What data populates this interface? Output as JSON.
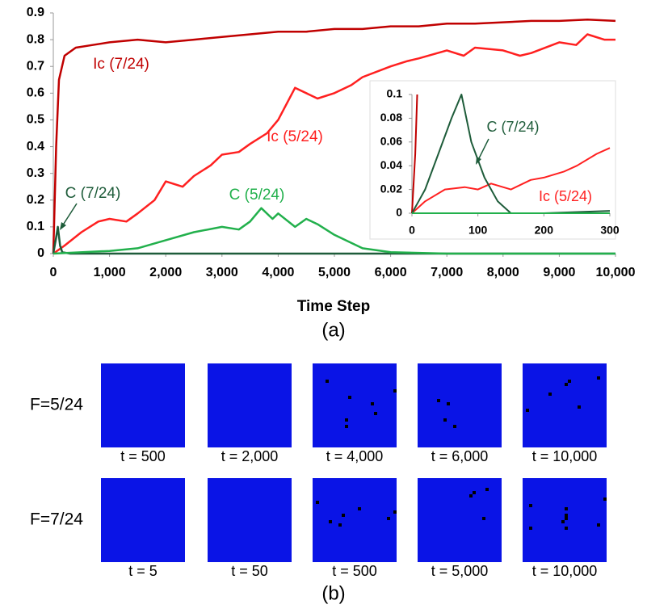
{
  "chart_data": [
    {
      "type": "line",
      "x_label": "Time Step",
      "caption": "(a)",
      "xlim": [
        0,
        10000
      ],
      "ylim": [
        0,
        0.9
      ],
      "xticks": [
        0,
        {
          "value": 1000,
          "label": "1,000"
        },
        {
          "value": 2000,
          "label": "2,000"
        },
        {
          "value": 3000,
          "label": "3,000"
        },
        {
          "value": 4000,
          "label": "4,000"
        },
        {
          "value": 5000,
          "label": "5,000"
        },
        {
          "value": 6000,
          "label": "6,000"
        },
        {
          "value": 7000,
          "label": "7,000"
        },
        {
          "value": 8000,
          "label": "8,000"
        },
        {
          "value": 9000,
          "label": "9,000"
        },
        {
          "value": 10000,
          "label": "10,000"
        }
      ],
      "yticks": [
        0,
        0.1,
        0.2,
        0.3,
        0.4,
        0.5,
        0.6,
        0.7,
        0.8,
        0.9
      ],
      "series": [
        {
          "name": "Ic (7/24)",
          "color": "#c00000",
          "x": [
            0,
            50,
            100,
            200,
            400,
            700,
            1000,
            1500,
            2000,
            2500,
            3000,
            3500,
            4000,
            4500,
            5000,
            5500,
            6000,
            6500,
            7000,
            7500,
            8000,
            8500,
            9000,
            9500,
            10000
          ],
          "values": [
            0,
            0.4,
            0.65,
            0.74,
            0.77,
            0.78,
            0.79,
            0.8,
            0.79,
            0.8,
            0.81,
            0.82,
            0.83,
            0.83,
            0.84,
            0.84,
            0.85,
            0.85,
            0.86,
            0.86,
            0.865,
            0.87,
            0.87,
            0.875,
            0.87
          ]
        },
        {
          "name": "Ic (5/24)",
          "color": "#ff2020",
          "x": [
            0,
            200,
            500,
            800,
            1000,
            1300,
            1500,
            1800,
            2000,
            2300,
            2500,
            2800,
            3000,
            3300,
            3500,
            3800,
            4000,
            4300,
            4700,
            5000,
            5300,
            5500,
            6000,
            6300,
            6500,
            7000,
            7300,
            7500,
            8000,
            8300,
            8500,
            9000,
            9300,
            9500,
            9800,
            10000
          ],
          "values": [
            0,
            0.03,
            0.08,
            0.12,
            0.13,
            0.12,
            0.15,
            0.2,
            0.27,
            0.25,
            0.29,
            0.33,
            0.37,
            0.38,
            0.41,
            0.45,
            0.5,
            0.62,
            0.58,
            0.6,
            0.63,
            0.66,
            0.7,
            0.72,
            0.73,
            0.76,
            0.74,
            0.77,
            0.76,
            0.74,
            0.75,
            0.79,
            0.78,
            0.82,
            0.8,
            0.8
          ]
        },
        {
          "name": "C (7/24)",
          "color": "#1e5c3a",
          "x": [
            0,
            50,
            80,
            120,
            160,
            300,
            10000
          ],
          "values": [
            0,
            0.06,
            0.1,
            0.03,
            0.005,
            0,
            0
          ]
        },
        {
          "name": "C (5/24)",
          "color": "#22b04c",
          "x": [
            0,
            1000,
            1500,
            2000,
            2500,
            3000,
            3300,
            3500,
            3700,
            3900,
            4000,
            4300,
            4500,
            4700,
            5000,
            5500,
            6000,
            7000,
            10000
          ],
          "values": [
            0,
            0.01,
            0.02,
            0.05,
            0.08,
            0.1,
            0.09,
            0.12,
            0.17,
            0.13,
            0.15,
            0.1,
            0.13,
            0.11,
            0.07,
            0.02,
            0.005,
            0,
            0
          ]
        }
      ]
    },
    {
      "type": "line",
      "xlim": [
        0,
        300
      ],
      "ylim": [
        0,
        0.1
      ],
      "xticks": [
        0,
        100,
        200,
        300
      ],
      "yticks": [
        0,
        0.02,
        0.04,
        0.06,
        0.08,
        0.1
      ],
      "series": [
        {
          "color": "#c00000",
          "x": [
            0,
            5,
            8
          ],
          "values": [
            0,
            0.05,
            0.1
          ]
        },
        {
          "name": "Ic (5/24)",
          "color": "#ff2020",
          "x": [
            0,
            20,
            50,
            80,
            100,
            120,
            150,
            180,
            200,
            230,
            250,
            280,
            300
          ],
          "values": [
            0,
            0.01,
            0.02,
            0.022,
            0.02,
            0.025,
            0.02,
            0.028,
            0.03,
            0.035,
            0.04,
            0.05,
            0.055
          ]
        },
        {
          "name": "C (7/24)",
          "color": "#1e5c3a",
          "x": [
            0,
            10,
            20,
            40,
            60,
            75,
            90,
            110,
            130,
            150,
            200,
            300
          ],
          "values": [
            0,
            0.01,
            0.02,
            0.05,
            0.08,
            0.1,
            0.06,
            0.03,
            0.01,
            0,
            0,
            0.002
          ]
        },
        {
          "color": "#22b04c",
          "x": [
            0,
            300
          ],
          "values": [
            0,
            0
          ]
        }
      ]
    }
  ],
  "figure_b": {
    "caption": "(b)",
    "rows": [
      {
        "label": "F=5/24",
        "times": [
          "t = 500",
          "t = 2,000",
          "t = 4,000",
          "t = 6,000",
          "t = 10,000"
        ]
      },
      {
        "label": "F=7/24",
        "times": [
          "t = 5",
          "t = 50",
          "t = 500",
          "t = 5,000",
          "t = 10,000"
        ]
      }
    ]
  }
}
